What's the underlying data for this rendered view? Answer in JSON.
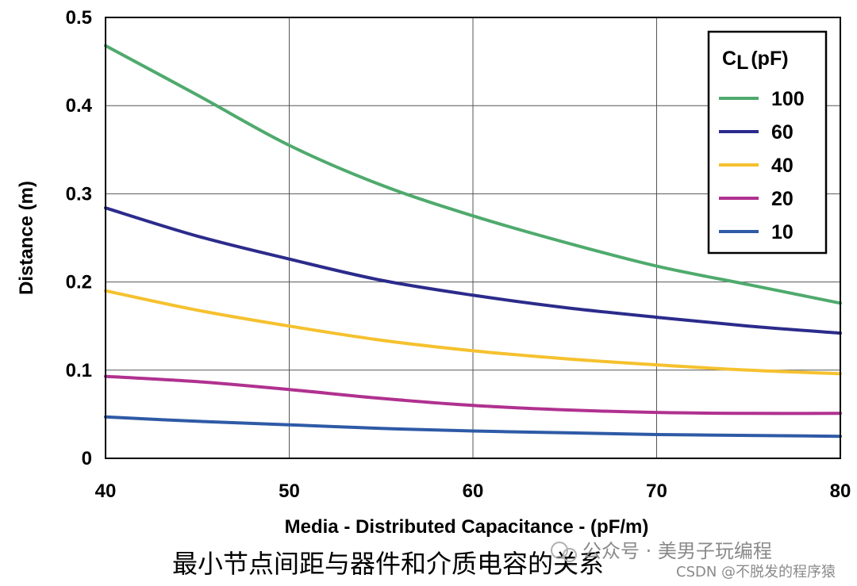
{
  "chart_data": {
    "type": "line",
    "xlabel": "Media - Distributed Capacitance - (pF/m)",
    "ylabel": "Distance (m)",
    "xlim": [
      40,
      80
    ],
    "ylim": [
      0,
      0.5
    ],
    "xticks": [
      "40",
      "50",
      "60",
      "70",
      "80"
    ],
    "yticks": [
      "0",
      "0.1",
      "0.2",
      "0.3",
      "0.4",
      "0.5"
    ],
    "grid": true,
    "legend": {
      "title_main": "C",
      "title_sub": "L",
      "title_unit": "(pF)",
      "position": "top-right"
    },
    "x": [
      40,
      45,
      50,
      55,
      60,
      65,
      70,
      75,
      80
    ],
    "series": [
      {
        "name": "100",
        "color": "#4faa6d",
        "values": [
          0.468,
          0.412,
          0.355,
          0.31,
          0.275,
          0.245,
          0.218,
          0.197,
          0.176
        ]
      },
      {
        "name": "60",
        "color": "#2b2b8c",
        "values": [
          0.284,
          0.252,
          0.226,
          0.202,
          0.185,
          0.171,
          0.16,
          0.15,
          0.142
        ]
      },
      {
        "name": "40",
        "color": "#f5c12e",
        "values": [
          0.19,
          0.168,
          0.15,
          0.134,
          0.122,
          0.113,
          0.106,
          0.1,
          0.096
        ]
      },
      {
        "name": "20",
        "color": "#b0318f",
        "values": [
          0.093,
          0.087,
          0.078,
          0.068,
          0.06,
          0.055,
          0.052,
          0.051,
          0.051
        ]
      },
      {
        "name": "10",
        "color": "#2e5aa6",
        "values": [
          0.047,
          0.042,
          0.038,
          0.034,
          0.031,
          0.029,
          0.027,
          0.026,
          0.025
        ]
      }
    ]
  },
  "caption": "最小节点间距与器件和介质电容的关系",
  "watermark": {
    "line1": "公众号 · 美男子玩编程",
    "line2": "CSDN @不脱发的程序猿"
  }
}
